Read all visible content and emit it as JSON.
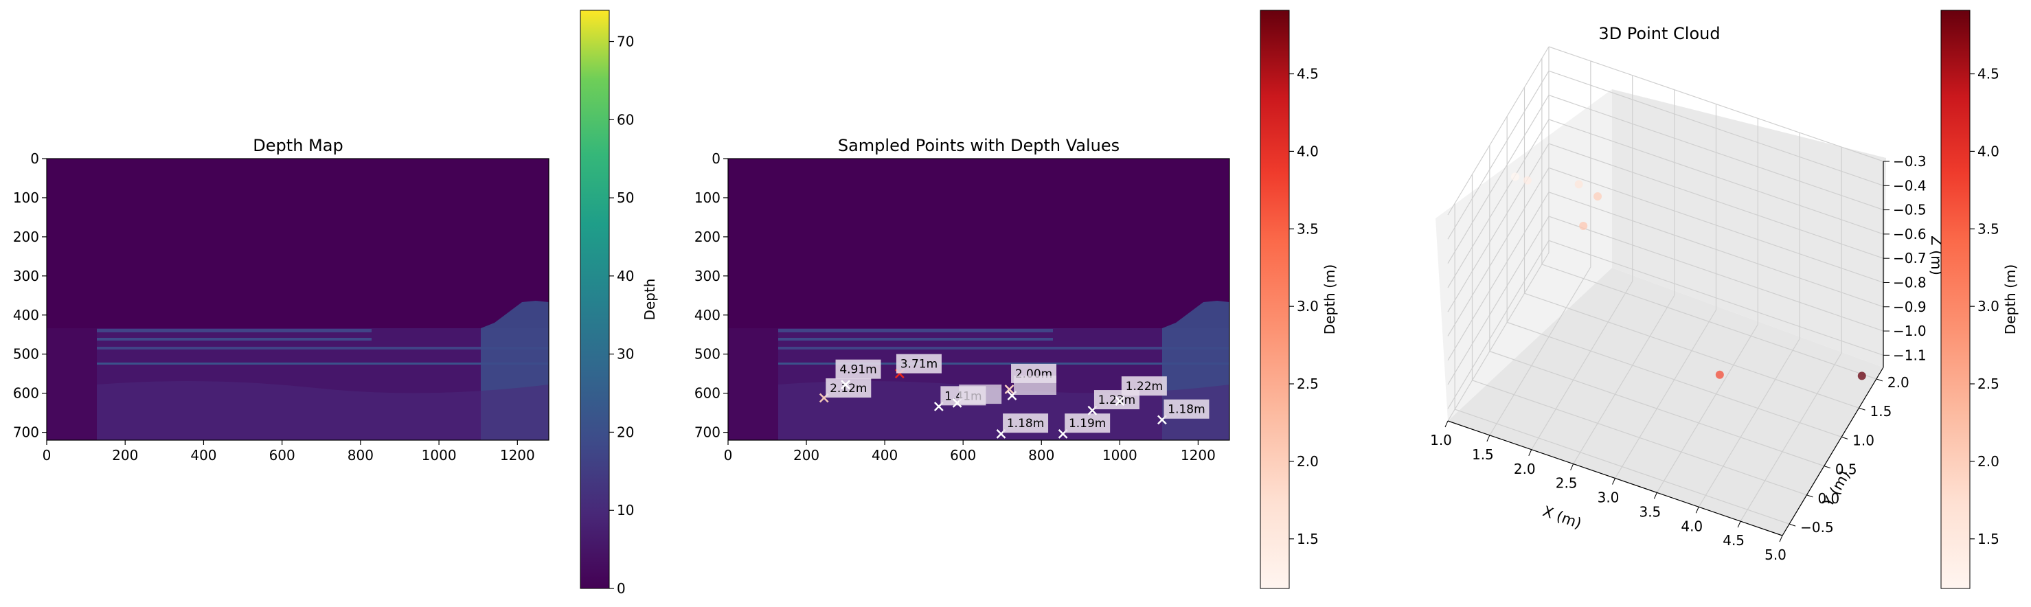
{
  "colors": {
    "depth_dark": "#440154",
    "depth_mid": "#3a3f84",
    "depth_band": "#414487",
    "label_box": "#d8d0dd",
    "red_marker": "#e8261d"
  },
  "chart_data": [
    {
      "type": "heatmap",
      "title": "Depth Map",
      "colormap": "viridis",
      "xlim": [
        0,
        1280
      ],
      "ylim": [
        720,
        0
      ],
      "xticks": [
        "0",
        "200",
        "400",
        "600",
        "800",
        "1000",
        "1200"
      ],
      "yticks": [
        "0",
        "100",
        "200",
        "300",
        "400",
        "500",
        "600",
        "700"
      ],
      "colorbar": {
        "label": "Depth",
        "range": [
          0,
          74
        ],
        "ticks": [
          "0",
          "10",
          "20",
          "30",
          "40",
          "50",
          "60",
          "70"
        ]
      }
    },
    {
      "type": "scatter",
      "title": "Sampled Points with Depth Values",
      "colormap": "viridis",
      "xlim": [
        0,
        1280
      ],
      "ylim": [
        720,
        0
      ],
      "xticks": [
        "0",
        "200",
        "400",
        "600",
        "800",
        "1000",
        "1200"
      ],
      "yticks": [
        "0",
        "100",
        "200",
        "300",
        "400",
        "500",
        "600",
        "700"
      ],
      "points": [
        {
          "x": 245,
          "y": 612,
          "label": "2.12m",
          "lx": 260,
          "ly": 590,
          "marker": "#f4c9b8"
        },
        {
          "x": 438,
          "y": 550,
          "label": "3.71m",
          "lx": 440,
          "ly": 528,
          "marker": "#e8261d"
        },
        {
          "x": 538,
          "y": 634,
          "label": "1.41m",
          "lx": 553,
          "ly": 610,
          "marker": "#ffffff"
        },
        {
          "x": 585,
          "y": 625,
          "label": "",
          "lx": 600,
          "ly": 606,
          "marker": "#ffffff"
        },
        {
          "x": 718,
          "y": 590,
          "label": "2.00m",
          "lx": 733,
          "ly": 553,
          "marker": "#fbd3c4"
        },
        {
          "x": 725,
          "y": 606,
          "label": "",
          "lx": 740,
          "ly": 583,
          "marker": "#ffffff"
        },
        {
          "x": 697,
          "y": 704,
          "label": "1.18m",
          "lx": 712,
          "ly": 680,
          "marker": "#ffffff"
        },
        {
          "x": 855,
          "y": 704,
          "label": "1.19m",
          "lx": 870,
          "ly": 680,
          "marker": "#ffffff"
        },
        {
          "x": 930,
          "y": 644,
          "label": "1.23m",
          "lx": 945,
          "ly": 620,
          "marker": "#ffffff"
        },
        {
          "x": 1108,
          "y": 668,
          "label": "1.18m",
          "lx": 1123,
          "ly": 644,
          "marker": "#ffffff"
        },
        {
          "x": 1000,
          "y": 620,
          "label": "1.22m",
          "lx": 1015,
          "ly": 585,
          "marker": "#ffffff"
        },
        {
          "x": 300,
          "y": 578,
          "label": "4.91m",
          "lx": 285,
          "ly": 542,
          "marker": "#ffffff"
        }
      ],
      "colorbar": {
        "label": "Depth (m)",
        "colormap": "Reds",
        "range": [
          1.18,
          4.91
        ],
        "ticks": [
          "1.5",
          "2.0",
          "2.5",
          "3.0",
          "3.5",
          "4.0",
          "4.5"
        ],
        "tick_values": [
          1.5,
          2.0,
          2.5,
          3.0,
          3.5,
          4.0,
          4.5
        ]
      }
    },
    {
      "type": "scatter",
      "title": "3D Point Cloud",
      "xlabel": "X (m)",
      "ylabel": "Y (m)",
      "zlabel": "Z (m)",
      "xlim": [
        1.0,
        5.0
      ],
      "ylim": [
        -0.7,
        2.2
      ],
      "zlim": [
        -1.15,
        -0.3
      ],
      "xticks": [
        "1.0",
        "1.5",
        "2.0",
        "2.5",
        "3.0",
        "3.5",
        "4.0",
        "4.5",
        "5.0"
      ],
      "yticks": [
        "−0.5",
        "0.0",
        "0.5",
        "1.0",
        "1.5",
        "2.0"
      ],
      "zticks": [
        "−0.3",
        "−0.4",
        "−0.5",
        "−0.6",
        "−0.7",
        "−0.8",
        "−0.9",
        "−1.0",
        "−1.1"
      ],
      "points": [
        {
          "x": 1.18,
          "y": 0.8,
          "z": -0.48,
          "depth": 1.18
        },
        {
          "x": 1.41,
          "y": 0.6,
          "z": -0.42,
          "depth": 1.41
        },
        {
          "x": 1.9,
          "y": 0.9,
          "z": -0.45,
          "depth": 1.6
        },
        {
          "x": 2.12,
          "y": 0.5,
          "z": -0.5,
          "depth": 2.12
        },
        {
          "x": 2.0,
          "y": 1.2,
          "z": -0.56,
          "depth": 2.0
        },
        {
          "x": 3.71,
          "y": 0.6,
          "z": -0.95,
          "depth": 3.71
        },
        {
          "x": 4.91,
          "y": 1.8,
          "z": -1.1,
          "depth": 4.91
        }
      ],
      "colorbar": {
        "label": "Depth (m)",
        "colormap": "Reds",
        "range": [
          1.18,
          4.91
        ],
        "ticks": [
          "1.5",
          "2.0",
          "2.5",
          "3.0",
          "3.5",
          "4.0",
          "4.5"
        ],
        "tick_values": [
          1.5,
          2.0,
          2.5,
          3.0,
          3.5,
          4.0,
          4.5
        ]
      }
    }
  ]
}
